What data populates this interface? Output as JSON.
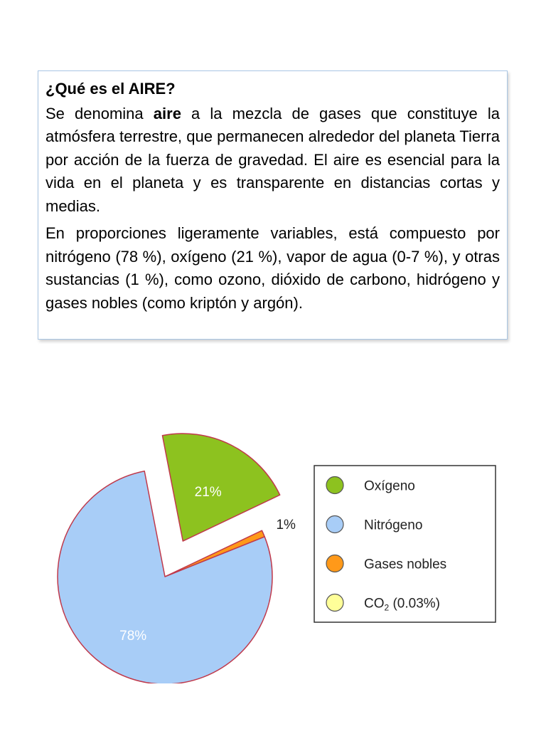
{
  "textbox": {
    "heading": "¿Qué es el AIRE?",
    "p1_a": "Se denomina ",
    "p1_bold": "aire",
    "p1_b": " a la mezcla de gases que constituye la atmósfera terrestre, que permanecen alrededor del planeta Tierra por acción de la fuerza de gravedad. El aire es esencial para la vida en el planeta y es transparente en distancias cortas y medias.",
    "p2": "En proporciones ligeramente variables, está compuesto por nitrógeno (78 %), oxígeno (21 %), vapor de agua (0-7 %), y otras sustancias (1 %), como ozono, dióxido de carbono, hidrógeno y gases nobles (como kriptón y argón)."
  },
  "chart_data": {
    "type": "pie",
    "slices": [
      {
        "name": "Oxígeno",
        "value": 21,
        "label": "21%",
        "color": "#8dc21f",
        "exploded": true
      },
      {
        "name": "Gases nobles",
        "value": 1,
        "label": "1%",
        "color": "#ff9919",
        "exploded": false
      },
      {
        "name": "Nitrógeno",
        "value": 78,
        "label": "78%",
        "color": "#a8cdf7",
        "exploded": false
      }
    ],
    "legend": {
      "position": "right",
      "entries": [
        {
          "label": "Oxígeno",
          "color": "#8dc21f"
        },
        {
          "label": "Nitrógeno",
          "color": "#a8cdf7"
        },
        {
          "label": "Gases nobles",
          "color": "#ff9919"
        },
        {
          "label": "CO",
          "sub": "2",
          "suffix": " (0.03%)",
          "color": "#ffff99"
        }
      ]
    },
    "slice_edge_color": "#c0394b"
  }
}
